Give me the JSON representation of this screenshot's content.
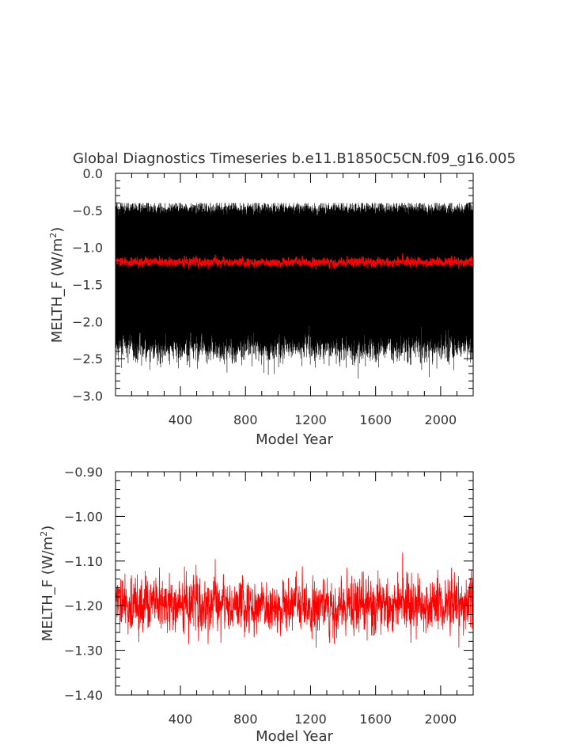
{
  "page_title": "Global Diagnostics Timeseries b.e11.B1850C5CN.f09_g16.005",
  "chart_data": [
    {
      "type": "line",
      "title": "Global Diagnostics Timeseries b.e11.B1850C5CN.f09_g16.005",
      "xlabel": "Model Year",
      "ylabel": "MELTH_F (W/m²)",
      "ylabel_main": "MELTH_F (W/m",
      "ylabel_sup": "2",
      "ylabel_close": ")",
      "xlim": [
        1,
        2200
      ],
      "ylim": [
        -3.0,
        0.0
      ],
      "xticks": [
        400,
        800,
        1200,
        1600,
        2000
      ],
      "xtick_labels": [
        "400",
        "800",
        "1200",
        "1600",
        "2000"
      ],
      "yticks": [
        0.0,
        -0.5,
        -1.0,
        -1.5,
        -2.0,
        -2.5,
        -3.0
      ],
      "ytick_labels": [
        "0.0",
        "−0.5",
        "−1.0",
        "−1.5",
        "−2.0",
        "−2.5",
        "−3.0"
      ],
      "grid": false,
      "series": [
        {
          "kind": "monthly",
          "color": "#000000",
          "points_per_year": 12,
          "annual_mean_approx": -1.2,
          "max_approx": -0.4,
          "min_approx": -2.8,
          "seed": 11
        },
        {
          "kind": "annual",
          "color": "#ff0000",
          "points_per_year": 1,
          "mean_approx": -1.2,
          "max_approx": -1.02,
          "min_approx": -1.33,
          "seed": 29
        }
      ]
    },
    {
      "type": "line",
      "title": "",
      "xlabel": "Model Year",
      "ylabel": "MELTH_F (W/m²)",
      "ylabel_main": "MELTH_F (W/m",
      "ylabel_sup": "2",
      "ylabel_close": ")",
      "xlim": [
        1,
        2200
      ],
      "ylim": [
        -1.4,
        -0.9
      ],
      "xticks": [
        400,
        800,
        1200,
        1600,
        2000
      ],
      "xtick_labels": [
        "400",
        "800",
        "1200",
        "1600",
        "2000"
      ],
      "yticks": [
        -0.9,
        -1.0,
        -1.1,
        -1.2,
        -1.3,
        -1.4
      ],
      "ytick_labels": [
        "−0.90",
        "−1.00",
        "−1.10",
        "−1.20",
        "−1.30",
        "−1.40"
      ],
      "grid": false,
      "series": [
        {
          "kind": "annual",
          "color": "#ff0000",
          "points_per_year": 1,
          "mean_approx": -1.2,
          "max_approx": -1.02,
          "min_approx": -1.33,
          "seed": 29
        }
      ]
    }
  ]
}
